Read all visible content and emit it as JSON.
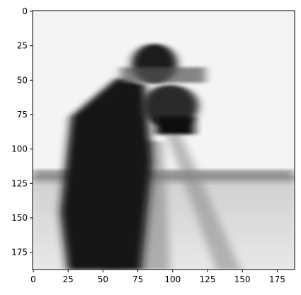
{
  "chart_data": {
    "type": "image",
    "image_width": 188,
    "image_height": 188,
    "xlim": [
      -0.5,
      187.5
    ],
    "ylim": [
      187.5,
      -0.5
    ],
    "x_ticks": [
      0,
      25,
      50,
      75,
      100,
      125,
      150,
      175
    ],
    "y_ticks": [
      0,
      25,
      50,
      75,
      100,
      125,
      150,
      175
    ],
    "x_tick_labels": [
      "0",
      "25",
      "50",
      "75",
      "100",
      "125",
      "150",
      "175"
    ],
    "y_tick_labels": [
      "0",
      "25",
      "50",
      "75",
      "100",
      "125",
      "150",
      "175"
    ],
    "colormap": "gray",
    "image_description_hidden": true,
    "grid": false
  }
}
